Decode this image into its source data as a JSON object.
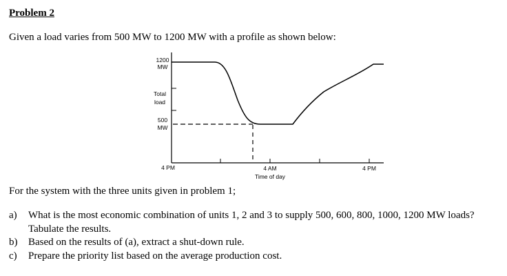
{
  "heading": "Problem 2",
  "intro": "Given a load varies from 500 MW to 1200 MW with a profile as shown below:",
  "figure": {
    "y_top_label_line1": "1200",
    "y_top_label_line2": "MW",
    "y_mid_label_line1": "Total",
    "y_mid_label_line2": "load",
    "y_low_label_line1": "500",
    "y_low_label_line2": "MW",
    "x_label_left": "4 PM",
    "x_label_mid_line1": "4 AM",
    "x_label_mid_line2": "Time of day",
    "x_label_right": "4 PM"
  },
  "chart_data": {
    "type": "line",
    "x": [
      "4 PM",
      "4 AM",
      "4 PM"
    ],
    "ylim": [
      500,
      1200
    ],
    "series": [
      {
        "points": [
          {
            "t": "4 PM",
            "load": 1200
          },
          {
            "t": "4 AM",
            "load": 500
          },
          {
            "t": "4 PM",
            "load": 1200
          }
        ]
      }
    ]
  },
  "system_text": "For the system with the three units given in problem 1;",
  "questions": [
    {
      "marker": "a)",
      "text": "What is the most economic combination of units 1, 2 and 3 to supply 500, 600, 800, 1000, 1200 MW loads? Tabulate the results."
    },
    {
      "marker": "b)",
      "text": "Based on the results of (a), extract a shut-down rule."
    },
    {
      "marker": "c)",
      "text": "Prepare the priority list based on the average production cost."
    }
  ]
}
